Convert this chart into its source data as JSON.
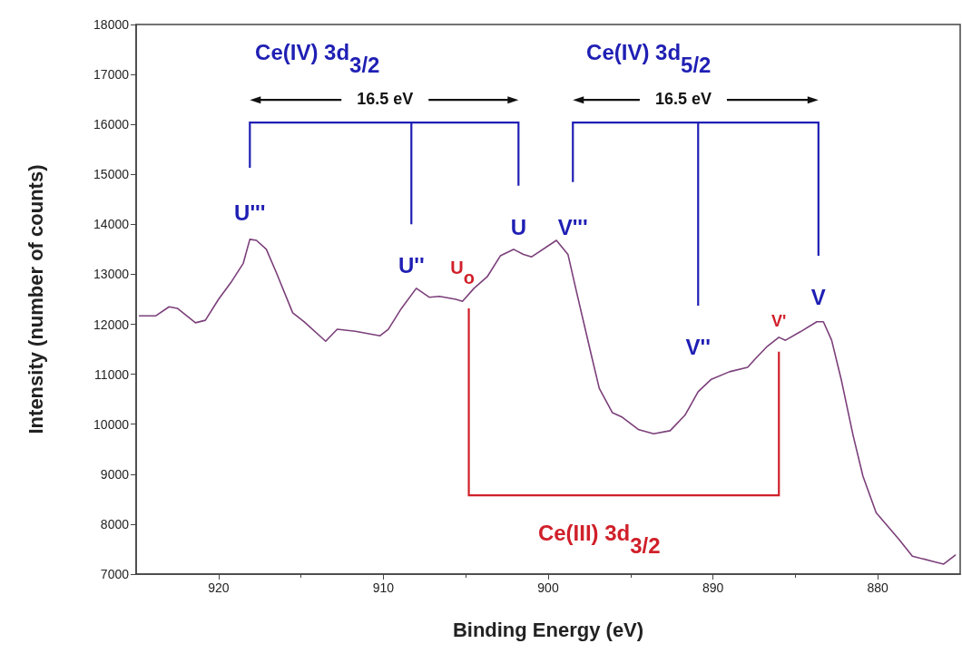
{
  "chart_data": {
    "type": "line",
    "xlabel": "Binding Energy (eV)",
    "ylabel": "Intensity (number of counts)",
    "xlim": [
      925,
      875
    ],
    "xticks": [
      920,
      910,
      900,
      890,
      880
    ],
    "ylim": [
      7000,
      18000
    ],
    "yticks": [
      7000,
      8000,
      9000,
      10000,
      11000,
      12000,
      13000,
      14000,
      15000,
      16000,
      17000,
      18000
    ],
    "grid": false,
    "marker": "none",
    "line_style": "solid",
    "series": [
      {
        "color": "#7b3f7a",
        "x": [
          924.8,
          923.8,
          923.0,
          922.5,
          921.4,
          920.8,
          920.0,
          919.2,
          918.5,
          918.1,
          917.7,
          917.1,
          916.5,
          915.5,
          914.8,
          913.5,
          912.8,
          911.7,
          910.2,
          909.7,
          908.9,
          908.0,
          907.2,
          906.6,
          905.6,
          905.2,
          904.5,
          903.7,
          902.9,
          902.1,
          901.5,
          901.0,
          899.5,
          898.8,
          898.3,
          897.4,
          896.9,
          896.1,
          895.5,
          894.5,
          893.6,
          892.6,
          891.7,
          890.9,
          890.1,
          889.0,
          887.9,
          887.4,
          886.7,
          886.0,
          885.6,
          884.7,
          883.7,
          883.3,
          882.8,
          882.2,
          881.5,
          880.9,
          880.1,
          878.7,
          877.9,
          876.5,
          876.0,
          875.3
        ],
        "values": [
          12170,
          12170,
          12350,
          12320,
          12030,
          12080,
          12500,
          12860,
          13220,
          13700,
          13680,
          13500,
          13040,
          12230,
          12050,
          11660,
          11900,
          11860,
          11770,
          11900,
          12320,
          12720,
          12540,
          12560,
          12500,
          12460,
          12720,
          12950,
          13370,
          13500,
          13400,
          13350,
          13680,
          13400,
          12680,
          11410,
          10720,
          10230,
          10140,
          9890,
          9810,
          9870,
          10180,
          10650,
          10900,
          11050,
          11140,
          11320,
          11560,
          11740,
          11680,
          11850,
          12050,
          12050,
          11680,
          10870,
          9780,
          8960,
          8230,
          7690,
          7360,
          7240,
          7200,
          7380
        ]
      }
    ],
    "annotations": [
      "Ce(IV) 3d$_{3/2}$",
      "16.5 eV",
      "Ce(IV) 3d$_{5/2}$",
      "16.5 eV",
      "U'''",
      "U''",
      "U",
      "U$_{o}$",
      "V'''",
      "V''",
      "V'",
      "V",
      "Ce(III) 3d$_{3/2}$"
    ]
  }
}
